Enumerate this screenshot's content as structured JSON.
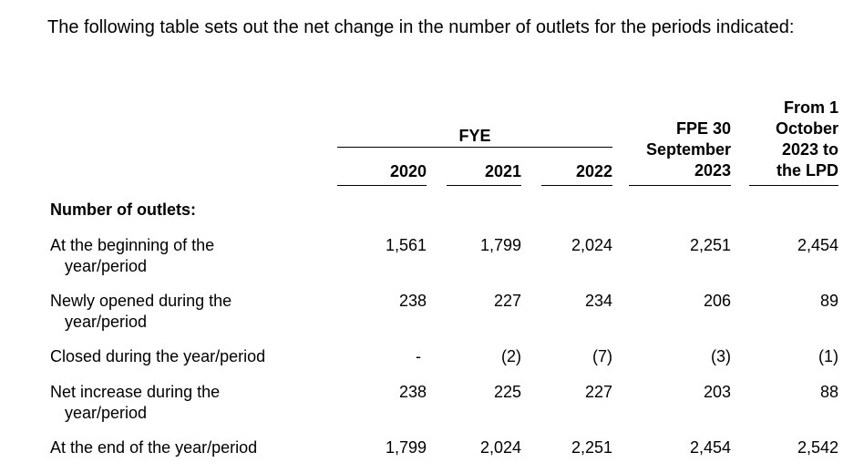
{
  "intro": "The following table sets out the net change in the number of outlets for the periods indicated:",
  "header": {
    "group": "FYE",
    "years": [
      "2020",
      "2021",
      "2022"
    ],
    "fpe": [
      "FPE 30",
      "September",
      "2023"
    ],
    "lpd": [
      "From 1",
      "October",
      "2023 to",
      "the LPD"
    ]
  },
  "section_title": "Number of outlets:",
  "rows": [
    {
      "label": [
        "At the beginning of the",
        "year/period"
      ],
      "values": [
        "1,561",
        "1,799",
        "2,024",
        "2,251",
        "2,454"
      ]
    },
    {
      "label": [
        "Newly opened during the",
        "year/period"
      ],
      "values": [
        "238",
        "227",
        "234",
        "206",
        "89"
      ]
    },
    {
      "label": [
        "Closed during the year/period",
        ""
      ],
      "values": [
        "-",
        "(2)",
        "(7)",
        "(3)",
        "(1)"
      ]
    },
    {
      "label": [
        "Net increase during the",
        "year/period"
      ],
      "values": [
        "238",
        "225",
        "227",
        "203",
        "88"
      ]
    },
    {
      "label": [
        "At the end of the year/period",
        ""
      ],
      "values": [
        "1,799",
        "2,024",
        "2,251",
        "2,454",
        "2,542"
      ]
    }
  ]
}
